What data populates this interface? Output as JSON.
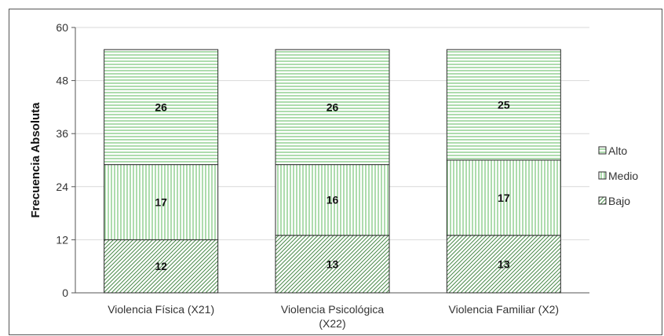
{
  "chart_data": {
    "type": "bar",
    "stacked": true,
    "categories": [
      [
        "Violencia Física (X21)"
      ],
      [
        "Violencia Psicológica",
        "(X22)"
      ],
      [
        "Violencia Familiar (X2)"
      ]
    ],
    "series": [
      {
        "name": "Bajo",
        "values": [
          12,
          13,
          13
        ],
        "pattern": "diagonal"
      },
      {
        "name": "Medio",
        "values": [
          17,
          16,
          17
        ],
        "pattern": "vertical"
      },
      {
        "name": "Alto",
        "values": [
          26,
          26,
          25
        ],
        "pattern": "horizontal"
      }
    ],
    "legend_order": [
      "Alto",
      "Medio",
      "Bajo"
    ],
    "ylabel": "Frecuencia Absoluta",
    "ylim": [
      0,
      60
    ],
    "yticks": [
      0,
      12,
      24,
      36,
      48,
      60
    ],
    "grid": true,
    "legend_position": "right",
    "colors": {
      "bar_fill": "#ffffff",
      "pattern": "#5cb85c",
      "border": "#2a2a2a",
      "grid": "#d9d9d9"
    }
  }
}
